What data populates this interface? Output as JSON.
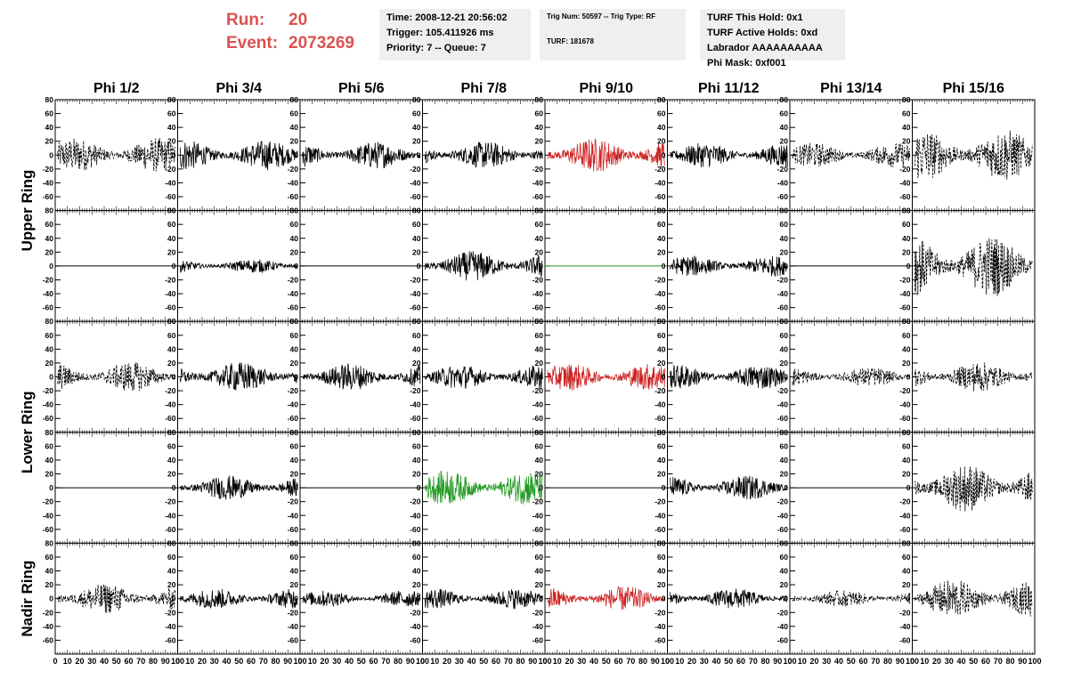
{
  "header": {
    "run_label": "Run:",
    "run_value": "20",
    "event_label": "Event:",
    "event_value": "2073269",
    "time": "Time: 2008-12-21 20:56:02",
    "trigger": "Trigger: 105.411926 ms",
    "priority": "Priority: 7 -- Queue: 7",
    "trig_num": "Trig Num: 50597 -- Trig Type: RF",
    "turf": "TURF: 181678",
    "turf_hold": "TURF This Hold: 0x1",
    "turf_active": "TURF Active Holds: 0xd",
    "labrador": "Labrador AAAAAAAAAA",
    "phi_mask": "Phi Mask: 0xf001"
  },
  "chart_data": {
    "type": "line",
    "columns": [
      "Phi 1/2",
      "Phi 3/4",
      "Phi 5/6",
      "Phi 7/8",
      "Phi 9/10",
      "Phi 11/12",
      "Phi 13/14",
      "Phi 15/16"
    ],
    "ring_labels": [
      "Upper Ring",
      "Lower Ring",
      "Nadir Ring"
    ],
    "rows": 5,
    "ylim": [
      -80,
      80
    ],
    "yticks": [
      -60,
      -40,
      -20,
      0,
      20,
      40,
      60,
      80
    ],
    "xlim": [
      0,
      100
    ],
    "xticks": [
      0,
      10,
      20,
      30,
      40,
      50,
      60,
      70,
      80,
      90,
      100
    ],
    "colors": {
      "black": "#000000",
      "red": "#cc2222",
      "green": "#229922"
    },
    "panels": [
      [
        "dashed",
        "solid",
        "solid",
        "solid",
        "red",
        "solid",
        "dashed",
        "dashed"
      ],
      [
        "flat",
        "solid",
        "flat",
        "solid",
        "greenflat",
        "solid",
        "flat",
        "dashed"
      ],
      [
        "dashed",
        "solid",
        "solid",
        "solid",
        "red",
        "solid",
        "dashed",
        "dashed"
      ],
      [
        "flat",
        "solid",
        "flat",
        "green",
        "flat",
        "solid",
        "flat",
        "dashed"
      ],
      [
        "dashed",
        "solid",
        "solid",
        "solid",
        "red",
        "solid",
        "dashed",
        "dashed"
      ]
    ],
    "amplitudes": [
      [
        25,
        22,
        20,
        20,
        25,
        18,
        18,
        38
      ],
      [
        0,
        10,
        0,
        22,
        0,
        15,
        0,
        45
      ],
      [
        22,
        22,
        20,
        18,
        20,
        18,
        14,
        22
      ],
      [
        0,
        18,
        0,
        25,
        0,
        18,
        0,
        35
      ],
      [
        22,
        15,
        12,
        15,
        18,
        15,
        12,
        28
      ]
    ]
  }
}
